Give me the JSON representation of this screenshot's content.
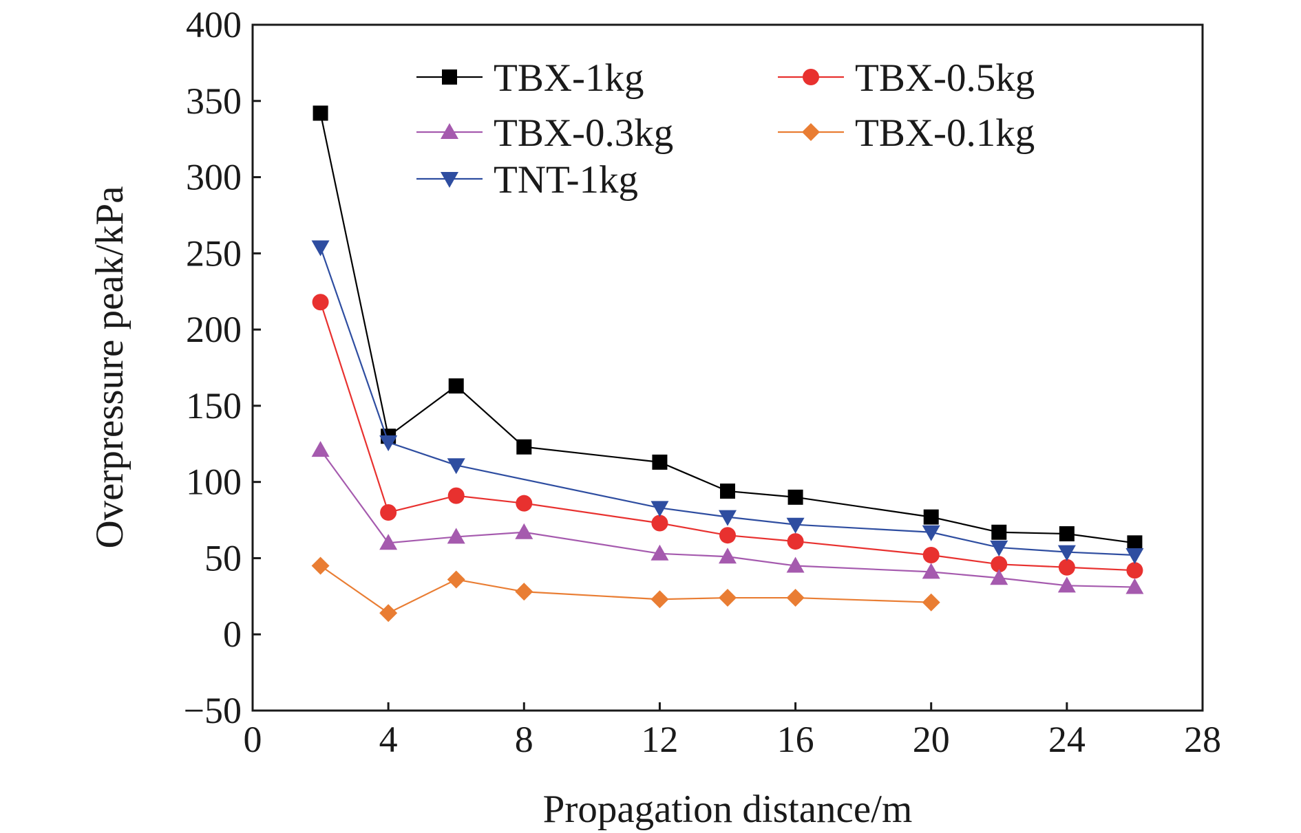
{
  "chart_data": {
    "type": "line",
    "title": "",
    "xlabel": "Propagation distance/m",
    "ylabel": "Overpressure peak/kPa",
    "xlim": [
      0,
      28
    ],
    "ylim": [
      -50,
      400
    ],
    "xticks": [
      0,
      4,
      8,
      12,
      16,
      20,
      24,
      28
    ],
    "yticks": [
      -50,
      0,
      50,
      100,
      150,
      200,
      250,
      300,
      350,
      400
    ],
    "xtick_labels": [
      "0",
      "4",
      "8",
      "12",
      "16",
      "20",
      "24",
      "28"
    ],
    "ytick_labels": [
      "−50",
      "0",
      "50",
      "100",
      "150",
      "200",
      "250",
      "300",
      "350",
      "400"
    ],
    "grid": false,
    "legend_position": "top",
    "series": [
      {
        "name": "TBX-1kg",
        "color": "#000000",
        "marker": "square",
        "x": [
          2,
          4,
          6,
          8,
          12,
          14,
          16,
          20,
          22,
          24,
          26
        ],
        "y": [
          342,
          130,
          163,
          123,
          113,
          94,
          90,
          77,
          67,
          66,
          60
        ]
      },
      {
        "name": "TBX-0.5kg",
        "color": "#e8312f",
        "marker": "circle",
        "x": [
          2,
          4,
          6,
          8,
          12,
          14,
          16,
          20,
          22,
          24,
          26
        ],
        "y": [
          218,
          80,
          91,
          86,
          73,
          65,
          61,
          52,
          46,
          44,
          42
        ]
      },
      {
        "name": "TBX-0.3kg",
        "color": "#a55aae",
        "marker": "triangle-up",
        "x": [
          2,
          4,
          6,
          8,
          12,
          14,
          16,
          20,
          22,
          24,
          26
        ],
        "y": [
          121,
          60,
          64,
          67,
          53,
          51,
          45,
          41,
          37,
          32,
          31
        ]
      },
      {
        "name": "TBX-0.1kg",
        "color": "#e97d33",
        "marker": "diamond",
        "x": [
          2,
          4,
          6,
          8,
          12,
          14,
          16,
          20
        ],
        "y": [
          45,
          14,
          36,
          28,
          23,
          24,
          24,
          21
        ]
      },
      {
        "name": "TNT-1kg",
        "color": "#2e4da0",
        "marker": "triangle-down",
        "x": [
          2,
          4,
          6,
          12,
          14,
          16,
          20,
          22,
          24,
          26
        ],
        "y": [
          254,
          126,
          111,
          83,
          77,
          72,
          67,
          57,
          54,
          52
        ]
      }
    ]
  }
}
